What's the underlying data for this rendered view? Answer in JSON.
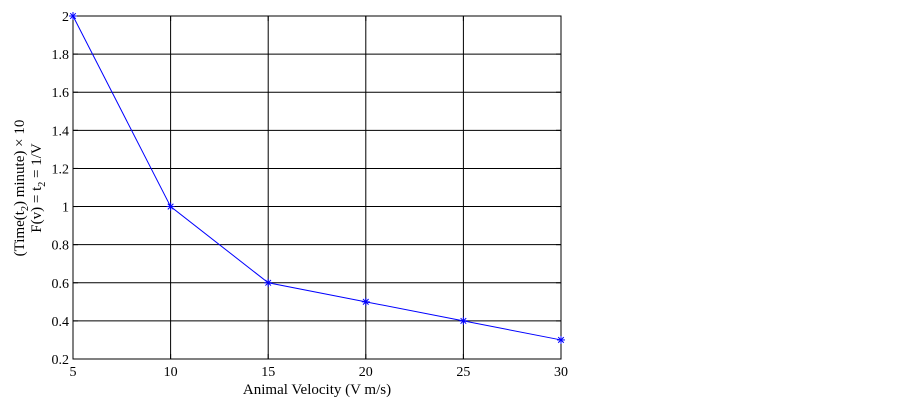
{
  "chart_data": {
    "type": "line",
    "title": "",
    "xlabel": "Animal Velocity (V m/s)",
    "ylabel_line1": "(Time(t",
    "ylabel_line1_sub": "2",
    "ylabel_line1_rest": ") minute) × 10",
    "ylabel_line2": "F(v) = t",
    "ylabel_line2_sub": "2",
    "ylabel_line2_rest": " = 1/V",
    "xlim": [
      5,
      30
    ],
    "ylim": [
      0.2,
      2
    ],
    "xticks": [
      5,
      10,
      15,
      20,
      25,
      30
    ],
    "yticks": [
      0.2,
      0.4,
      0.6,
      0.8,
      1,
      1.2,
      1.4,
      1.6,
      1.8,
      2
    ],
    "xtick_labels": [
      "5",
      "10",
      "15",
      "20",
      "25",
      "30"
    ],
    "ytick_labels": [
      "0.2",
      "0.4",
      "0.6",
      "0.8",
      "1",
      "1.2",
      "1.4",
      "1.6",
      "1.8",
      "2"
    ],
    "grid": true,
    "series": [
      {
        "x": [
          5,
          10,
          15,
          20,
          25,
          30
        ],
        "values": [
          2,
          1,
          0.6,
          0.5,
          0.4,
          0.3
        ],
        "color": "#0000ff",
        "marker": "star"
      }
    ]
  }
}
